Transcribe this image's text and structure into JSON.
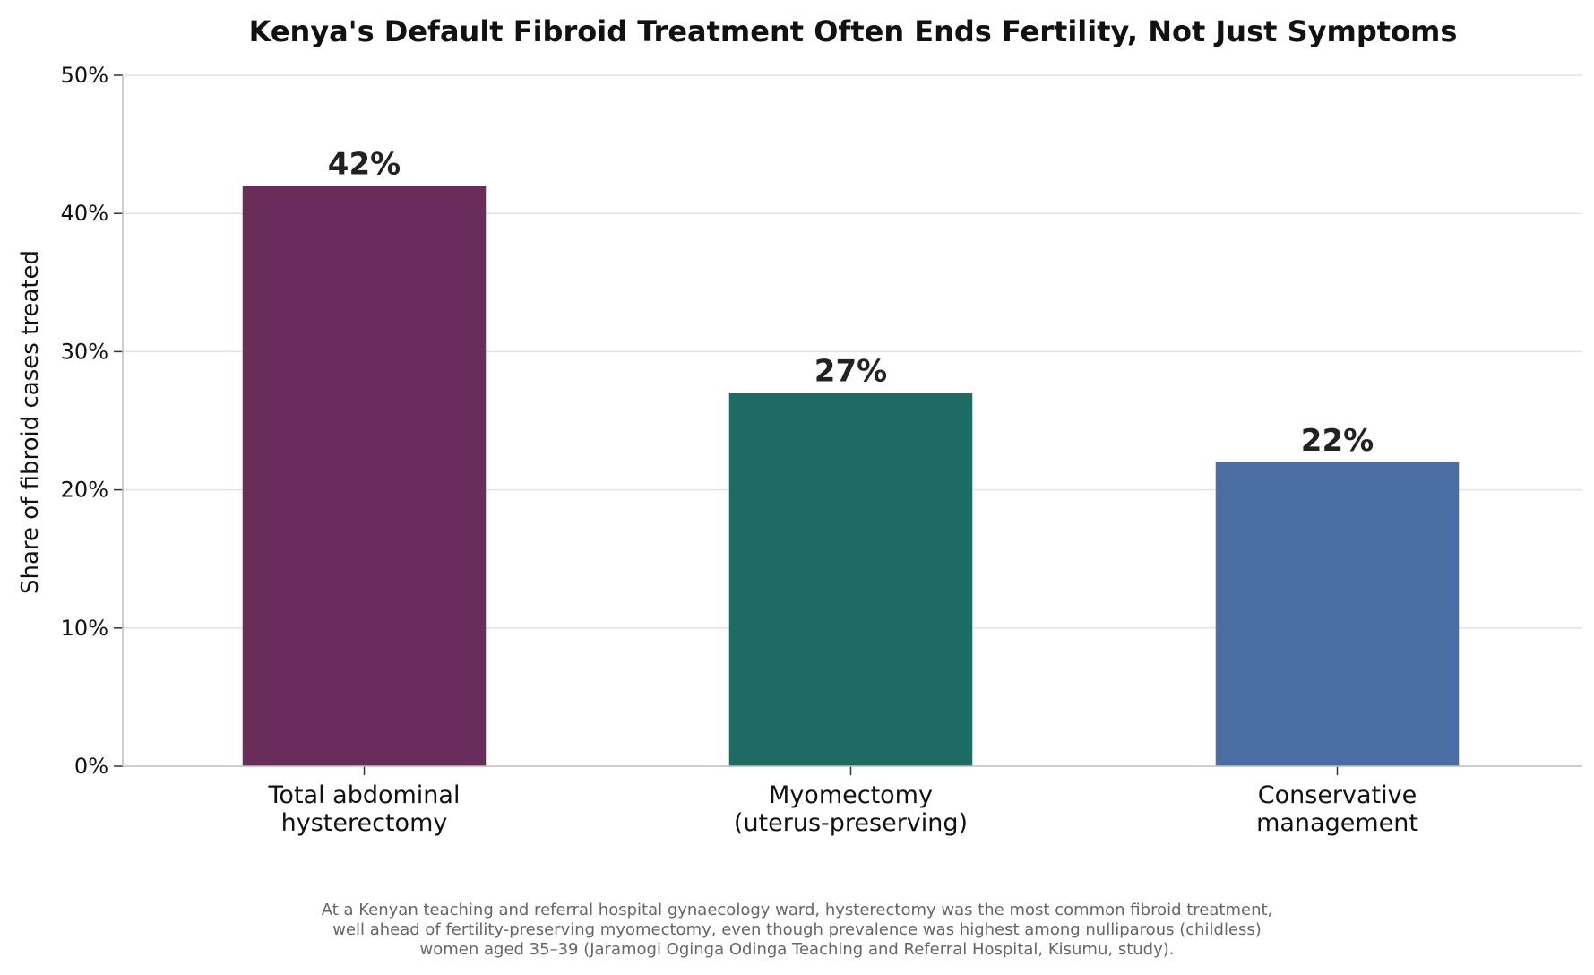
{
  "chart_data": {
    "type": "bar",
    "title": "Kenya's Default Fibroid Treatment Often Ends Fertility, Not Just Symptoms",
    "ylabel": "Share of fibroid cases treated",
    "xlabel": "",
    "categories": [
      [
        "Total abdominal",
        "hysterectomy"
      ],
      [
        "Myomectomy",
        "(uterus-preserving)"
      ],
      [
        "Conservative",
        "management"
      ]
    ],
    "values": [
      42,
      27,
      22
    ],
    "value_labels": [
      "42%",
      "27%",
      "22%"
    ],
    "colors": [
      "#6a2c5a",
      "#1e6b63",
      "#4a6ea3"
    ],
    "ylim": [
      0,
      50
    ],
    "yticks": [
      0,
      10,
      20,
      30,
      40,
      50
    ],
    "ytick_labels": [
      "0%",
      "10%",
      "20%",
      "30%",
      "40%",
      "50%"
    ],
    "grid": "horizontal",
    "legend": "none"
  },
  "caption": [
    "At a Kenyan teaching and referral hospital gynaecology ward, hysterectomy was the most common fibroid treatment,",
    "well ahead of fertility-preserving myomectomy, even though prevalence was highest among nulliparous (childless)",
    "women aged 35–39 (Jaramogi Oginga Odinga Teaching and Referral Hospital, Kisumu, study)."
  ]
}
